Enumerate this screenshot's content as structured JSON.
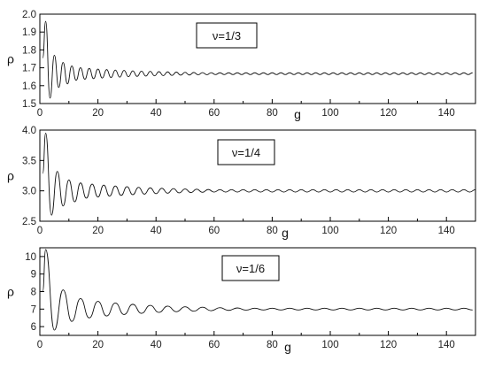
{
  "chart_data": [
    {
      "type": "line",
      "annotation": "ν=1/3",
      "xlabel": "g",
      "ylabel": "ρ",
      "xlim": [
        0,
        150
      ],
      "ylim": [
        1.5,
        2.0
      ],
      "xticks": [
        0,
        20,
        40,
        60,
        80,
        100,
        120,
        140
      ],
      "xtick_labels": [
        "0",
        "20",
        "40",
        "60",
        "80",
        "100",
        "120",
        "140"
      ],
      "yticks": [
        1.5,
        1.6,
        1.7,
        1.8,
        1.9,
        2.0
      ],
      "ytick_labels": [
        "1.5",
        "1.6",
        "1.7",
        "1.8",
        "1.9",
        "2.0"
      ],
      "series": [
        {
          "asymptote": 1.667,
          "period": 3,
          "x_start": 1,
          "x_end": 150,
          "peaks": [
            [
              2,
              1.96
            ],
            [
              3.5,
              1.53
            ],
            [
              5,
              1.77
            ],
            [
              6.5,
              1.59
            ],
            [
              8,
              1.73
            ],
            [
              9.5,
              1.61
            ],
            [
              11,
              1.71
            ],
            [
              12.5,
              1.63
            ],
            [
              14,
              1.7
            ]
          ],
          "amplitude_late": 0.005,
          "color": "#111111"
        }
      ]
    },
    {
      "type": "line",
      "annotation": "ν=1/4",
      "xlabel": "g",
      "ylabel": "ρ",
      "xlim": [
        0,
        150
      ],
      "ylim": [
        2.5,
        4.0
      ],
      "xticks": [
        0,
        20,
        40,
        60,
        80,
        100,
        120,
        140
      ],
      "xtick_labels": [
        "0",
        "20",
        "40",
        "60",
        "80",
        "100",
        "120",
        "140"
      ],
      "yticks": [
        2.5,
        3.0,
        3.5,
        4.0
      ],
      "ytick_labels": [
        "2.5",
        "3.0",
        "3.5",
        "4.0"
      ],
      "series": [
        {
          "asymptote": 3.0,
          "period": 4,
          "x_start": 1,
          "x_end": 150,
          "peaks": [
            [
              2,
              3.95
            ],
            [
              4,
              2.6
            ],
            [
              6,
              3.32
            ],
            [
              8,
              2.75
            ],
            [
              10,
              3.18
            ],
            [
              12,
              2.82
            ],
            [
              14,
              3.13
            ]
          ],
          "amplitude_late": 0.02,
          "color": "#111111"
        }
      ]
    },
    {
      "type": "line",
      "annotation": "ν=1/6",
      "xlabel": "g",
      "ylabel": "ρ",
      "xlim": [
        0,
        150
      ],
      "ylim": [
        5.5,
        10.5
      ],
      "xticks": [
        0,
        20,
        40,
        60,
        80,
        100,
        120,
        140
      ],
      "xtick_labels": [
        "0",
        "20",
        "40",
        "60",
        "80",
        "100",
        "120",
        "140"
      ],
      "yticks": [
        6,
        7,
        8,
        9,
        10
      ],
      "ytick_labels": [
        "6",
        "7",
        "8",
        "9",
        "10"
      ],
      "series": [
        {
          "asymptote": 7.0,
          "period": 6,
          "x_start": 1,
          "x_end": 150,
          "peaks": [
            [
              2,
              10.4
            ],
            [
              5,
              5.8
            ],
            [
              8,
              8.1
            ],
            [
              11,
              6.3
            ],
            [
              14,
              7.6
            ],
            [
              17,
              6.5
            ]
          ],
          "amplitude_late": 0.05,
          "color": "#111111"
        }
      ]
    }
  ]
}
